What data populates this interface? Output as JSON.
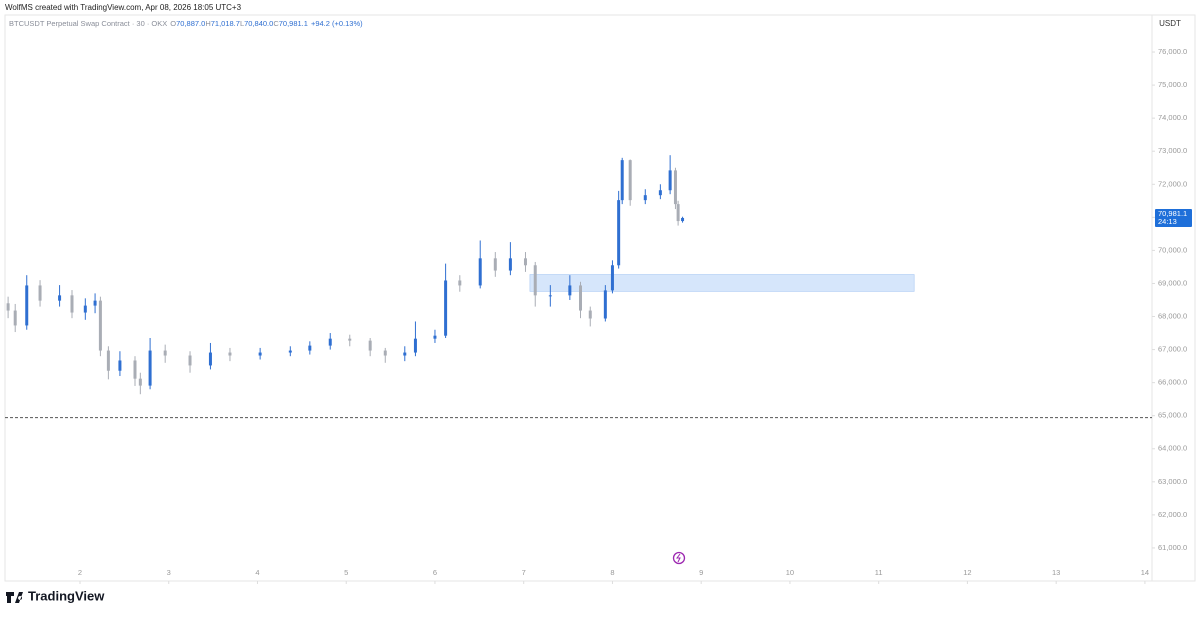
{
  "attribution": "WolfMS created with TradingView.com, Apr 08, 2026 18:05 UTC+3",
  "brand": "TradingView",
  "chart_data": {
    "type": "candlestick",
    "symbol": "BTCUSDT Perpetual Swap Contract · 30 · OKX",
    "legend": [
      {
        "label": "O",
        "value": "70,887.0"
      },
      {
        "label": "H",
        "value": "71,018.7"
      },
      {
        "label": "L",
        "value": "70,840.0"
      },
      {
        "label": "C",
        "value": "70,981.1"
      }
    ],
    "change": "+94.2 (+0.13%)",
    "y_unit": "USDT",
    "last_price_label": "70,981.1",
    "countdown": "24:13",
    "up_color": "#2f6fd1",
    "down_color": "#a9adb5",
    "x": [
      1.19,
      1.27,
      1.4,
      1.55,
      1.77,
      1.91,
      2.06,
      2.17,
      2.23,
      2.32,
      2.45,
      2.62,
      2.68,
      2.79,
      2.96,
      3.24,
      3.47,
      3.69,
      4.03,
      4.37,
      4.59,
      4.82,
      5.04,
      5.27,
      5.44,
      5.66,
      5.78,
      6.0,
      6.12,
      6.28,
      6.51,
      6.68,
      6.85,
      7.02,
      7.13,
      7.3,
      7.52,
      7.64,
      7.75,
      7.92,
      8.0,
      8.07,
      8.11,
      8.2,
      8.37,
      8.54,
      8.65,
      8.71,
      8.74,
      8.79
    ],
    "open": [
      68400,
      68180,
      67730,
      68940,
      68480,
      68640,
      68120,
      68330,
      68480,
      66970,
      66360,
      66670,
      66120,
      65910,
      66970,
      66820,
      66520,
      66910,
      66820,
      66910,
      66970,
      67120,
      67330,
      67270,
      66970,
      66820,
      66910,
      67330,
      67420,
      69090,
      68940,
      69760,
      69390,
      69760,
      69550,
      68640,
      68640,
      68940,
      68180,
      67940,
      68790,
      69550,
      71520,
      72730,
      71520,
      71670,
      71820,
      72420,
      71400,
      70887
    ],
    "high": [
      68600,
      68380,
      69250,
      69100,
      68950,
      68800,
      68550,
      68700,
      68600,
      67100,
      66950,
      66800,
      66300,
      67350,
      67150,
      66950,
      67200,
      67050,
      67050,
      67100,
      67250,
      67500,
      67450,
      67350,
      67050,
      67100,
      67850,
      67600,
      69600,
      69250,
      70300,
      69950,
      70250,
      69950,
      69650,
      68950,
      69250,
      69050,
      68300,
      68950,
      69700,
      71800,
      72800,
      72750,
      71850,
      72000,
      72880,
      72500,
      71500,
      71018.7
    ],
    "low": [
      67950,
      67530,
      67600,
      68300,
      68300,
      67950,
      67900,
      68100,
      66800,
      66100,
      66200,
      65900,
      65650,
      65800,
      66600,
      66300,
      66400,
      66650,
      66700,
      66800,
      66850,
      67000,
      67100,
      66800,
      66600,
      66650,
      66800,
      67200,
      67350,
      68750,
      68850,
      69200,
      69250,
      69350,
      68300,
      68300,
      68500,
      67950,
      67700,
      67850,
      68700,
      69450,
      71400,
      71350,
      71400,
      71550,
      71700,
      71250,
      70750,
      70840
    ],
    "close": [
      68180,
      67730,
      68940,
      68480,
      68640,
      68120,
      68330,
      68480,
      66970,
      66360,
      66670,
      66120,
      65910,
      66970,
      66820,
      66520,
      66910,
      66820,
      66910,
      66970,
      67120,
      67330,
      67270,
      66970,
      66820,
      66910,
      67330,
      67420,
      69090,
      68940,
      69760,
      69390,
      69760,
      69550,
      68640,
      68640,
      68940,
      68180,
      67940,
      68790,
      69550,
      71520,
      72730,
      71520,
      71670,
      71820,
      72420,
      71400,
      70887,
      70981.1
    ],
    "xlim": [
      1.155,
      14.08
    ],
    "ylim": [
      60000,
      77120
    ],
    "xticks": [
      2,
      3,
      4,
      5,
      6,
      7,
      8,
      9,
      10,
      11,
      12,
      13,
      14
    ],
    "yticks": [
      {
        "value": 61000,
        "label": "61,000.0"
      },
      {
        "value": 62000,
        "label": "62,000.0"
      },
      {
        "value": 63000,
        "label": "63,000.0"
      },
      {
        "value": 64000,
        "label": "64,000.0"
      },
      {
        "value": 65000,
        "label": "65,000.0"
      },
      {
        "value": 66000,
        "label": "66,000.0"
      },
      {
        "value": 67000,
        "label": "67,000.0"
      },
      {
        "value": 68000,
        "label": "68,000.0"
      },
      {
        "value": 69000,
        "label": "69,000.0"
      },
      {
        "value": 70000,
        "label": "70,000.0"
      },
      {
        "value": 71000,
        "label": "71,000.0"
      },
      {
        "value": 72000,
        "label": "72,000.0"
      },
      {
        "value": 73000,
        "label": "73,000.0"
      },
      {
        "value": 74000,
        "label": "74,000.0"
      },
      {
        "value": 75000,
        "label": "75,000.0"
      },
      {
        "value": 76000,
        "label": "76,000.0"
      }
    ],
    "zone": {
      "x": [
        7.07,
        11.4
      ],
      "y": [
        68760,
        69270
      ],
      "color": "#d6e6fb"
    },
    "hline": {
      "value": 64940,
      "color": "#555555"
    }
  }
}
